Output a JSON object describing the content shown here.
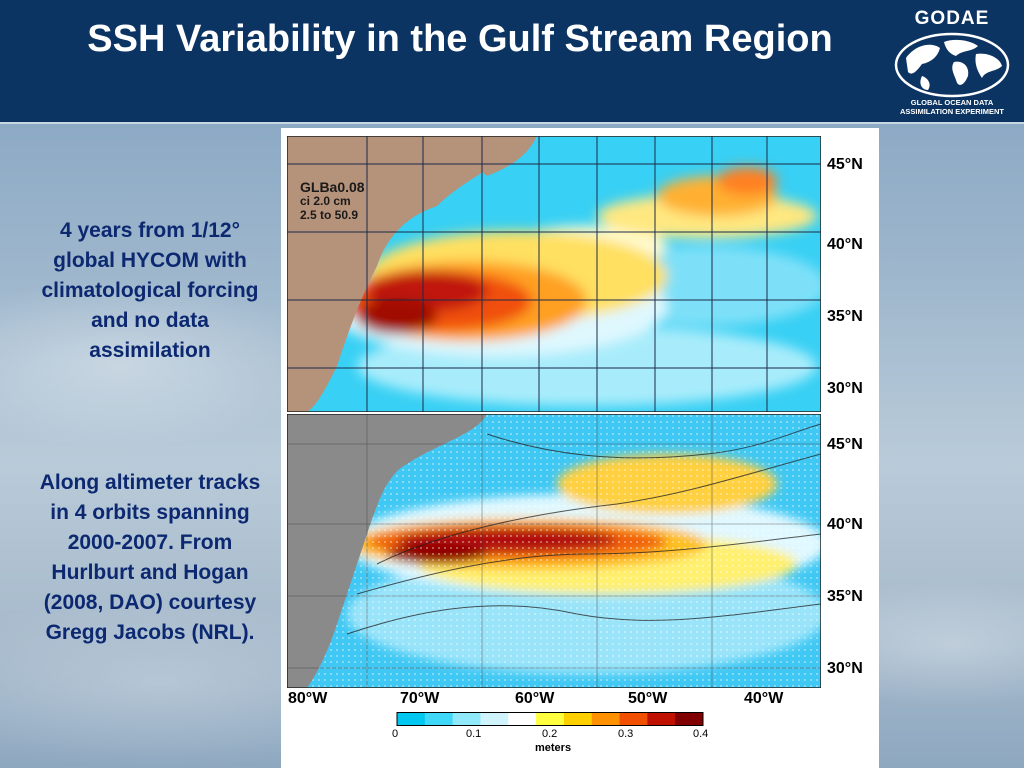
{
  "slide": {
    "title": "SSH Variability in the Gulf Stream Region",
    "logo": {
      "name": "GODAE",
      "subtitle_line1": "GLOBAL OCEAN DATA",
      "subtitle_line2": "ASSIMILATION EXPERIMENT"
    },
    "notes": [
      "4 years from 1/12° global HYCOM with climatological forcing and no data assimilation",
      "Along altimeter tracks in 4 orbits spanning 2000-2007. From Hurlburt and Hogan (2008, DAO) courtesy Gregg Jacobs (NRL)."
    ]
  },
  "figure": {
    "top_panel": {
      "label_line1": "GLBa0.08",
      "label_line2": "ci 2.0 cm",
      "label_line3": "2.5 to 50.9"
    },
    "lat_labels_top": [
      "45°N",
      "40°N",
      "35°N",
      "30°N"
    ],
    "lat_labels_bottom": [
      "45°N",
      "40°N",
      "35°N",
      "30°N"
    ],
    "lon_labels": [
      "80°W",
      "70°W",
      "60°W",
      "50°W",
      "40°W"
    ],
    "colorbar": {
      "ticks": [
        "0",
        "0.1",
        "0.2",
        "0.3",
        "0.4"
      ],
      "units": "meters",
      "colors": [
        "#00c8f0",
        "#40d8f8",
        "#90e8fb",
        "#d0f4fc",
        "#ffffff",
        "#ffff40",
        "#ffd000",
        "#ff9000",
        "#f05000",
        "#c01000",
        "#800000"
      ]
    }
  }
}
